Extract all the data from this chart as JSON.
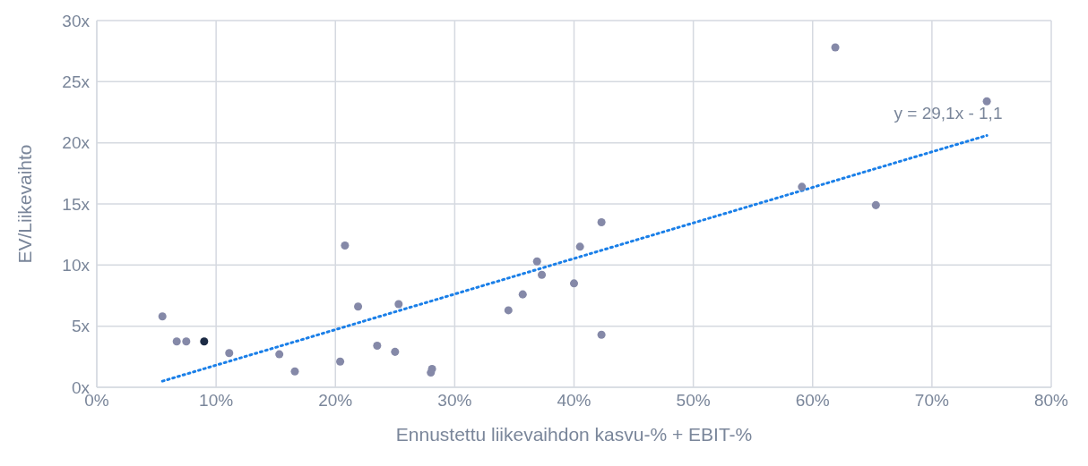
{
  "chart_data": {
    "type": "scatter",
    "xlabel": "Ennustettu liikevaihdon kasvu-% + EBIT-%",
    "ylabel": "EV/Liikevaihto",
    "xlim": [
      0,
      80
    ],
    "xticks": [
      {
        "value": 0,
        "label": "0%"
      },
      {
        "value": 10,
        "label": "10%"
      },
      {
        "value": 20,
        "label": "20%"
      },
      {
        "value": 30,
        "label": "30%"
      },
      {
        "value": 40,
        "label": "40%"
      },
      {
        "value": 50,
        "label": "50%"
      },
      {
        "value": 60,
        "label": "60%"
      },
      {
        "value": 70,
        "label": "70%"
      },
      {
        "value": 80,
        "label": "80%"
      }
    ],
    "ylim": [
      0,
      30
    ],
    "yticks": [
      {
        "value": 0,
        "label": "0x"
      },
      {
        "value": 5,
        "label": "5x"
      },
      {
        "value": 10,
        "label": "10x"
      },
      {
        "value": 15,
        "label": "15x"
      },
      {
        "value": 20,
        "label": "20x"
      },
      {
        "value": 25,
        "label": "25x"
      },
      {
        "value": 30,
        "label": "30x"
      }
    ],
    "grid": true,
    "legend": false,
    "series": [
      {
        "type": "scatter",
        "marker": "circle",
        "color": "#8589a8",
        "x": [
          5.5,
          6.7,
          7.5,
          11.1,
          15.3,
          16.6,
          20.4,
          20.8,
          21.9,
          23.5,
          25.0,
          25.3,
          28.0,
          28.1,
          34.5,
          35.7,
          36.9,
          37.3,
          40.0,
          40.5,
          42.3,
          42.3,
          59.1,
          61.9,
          65.3,
          74.6
        ],
        "values": [
          5.8,
          3.75,
          3.75,
          2.8,
          2.7,
          1.3,
          2.1,
          11.6,
          6.6,
          3.4,
          2.9,
          6.8,
          1.2,
          1.5,
          6.3,
          7.6,
          10.3,
          9.2,
          8.5,
          11.5,
          13.5,
          4.3,
          16.4,
          27.8,
          14.9,
          23.4
        ]
      },
      {
        "type": "scatter",
        "marker": "circle",
        "color": "#1c2b45",
        "x": [
          9.0
        ],
        "values": [
          3.75
        ]
      },
      {
        "type": "line",
        "color": "#1a7fe8",
        "line_style": "dotted",
        "x": [
          5.5,
          74.6
        ],
        "values": [
          0.5,
          20.6
        ]
      }
    ],
    "annotations": [
      "y = 29,1x - 1,1"
    ]
  }
}
